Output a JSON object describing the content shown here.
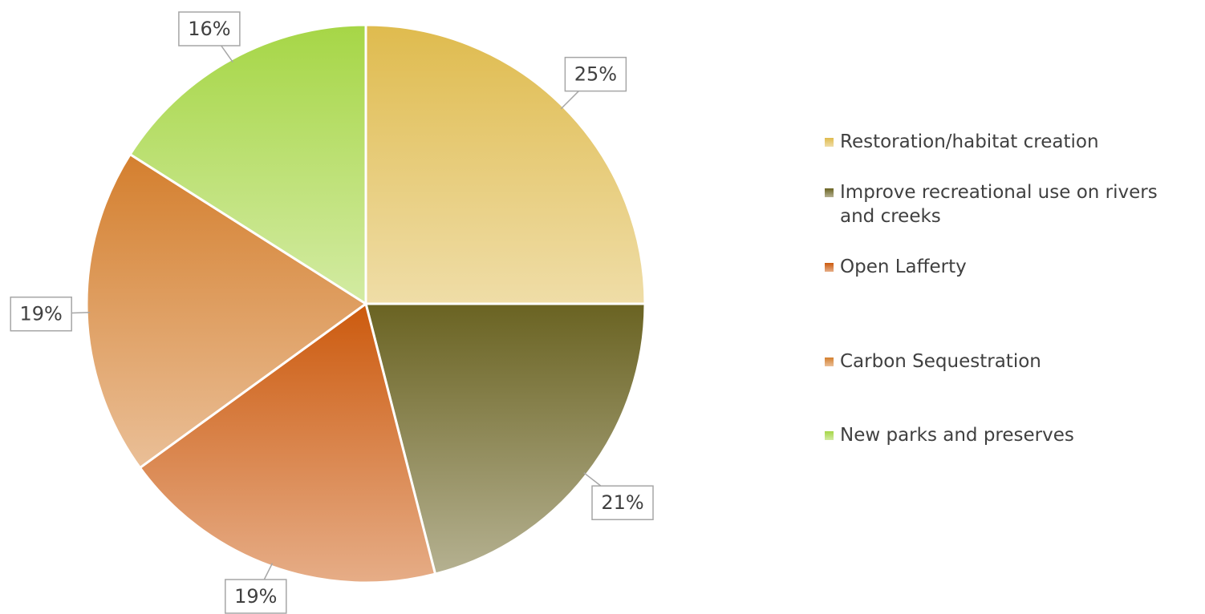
{
  "chart_data": {
    "type": "pie",
    "categories": [
      "Restoration/habitat creation",
      "Improve recreational use on rivers and creeks",
      "Open Lafferty",
      "Carbon Sequestration",
      "New parks and preserves"
    ],
    "values": [
      25,
      21,
      19,
      19,
      16
    ],
    "value_labels": [
      "25%",
      "21%",
      "19%",
      "19%",
      "16%"
    ],
    "colors": [
      "#dfbb4e",
      "#6a6322",
      "#cc5a0e",
      "#d47f2e",
      "#a6d646"
    ],
    "legend": "right"
  }
}
